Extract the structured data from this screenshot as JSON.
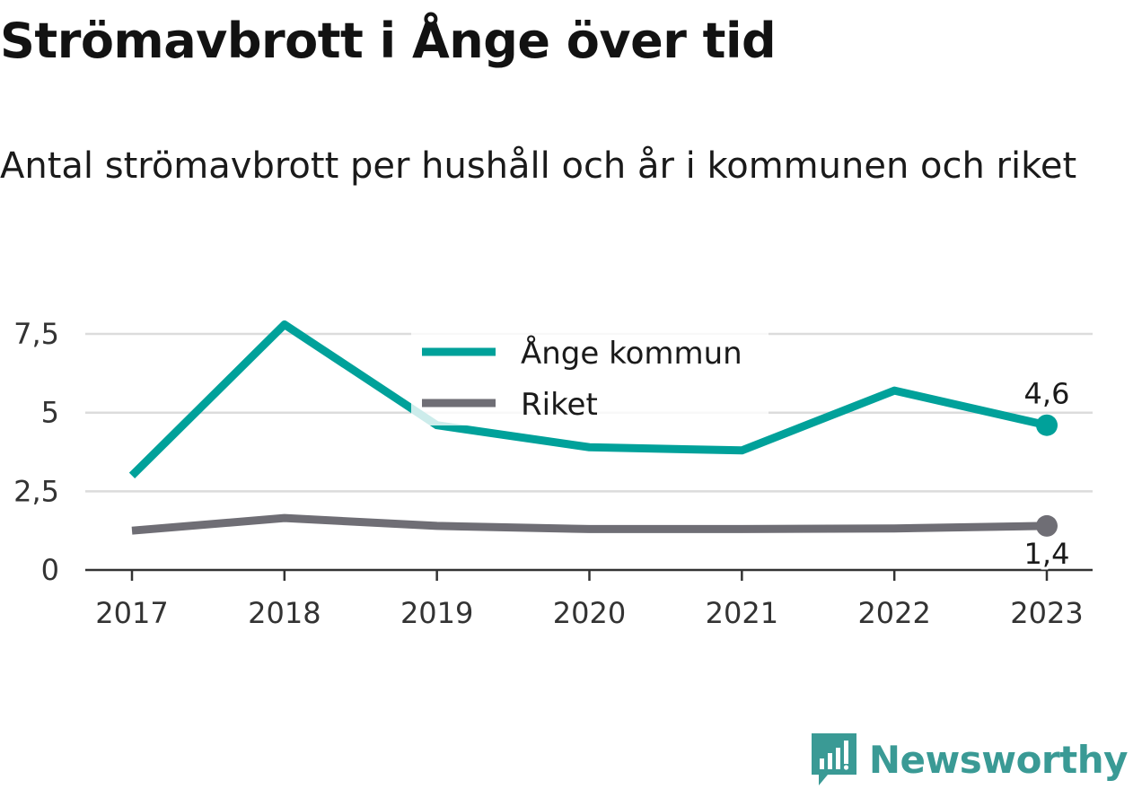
{
  "chart_data": {
    "type": "line",
    "title": "Strömavbrott i Ånge över tid",
    "subtitle": "Antal strömavbrott per hushåll och år i kommunen och riket",
    "x": [
      "2017",
      "2018",
      "2019",
      "2020",
      "2021",
      "2022",
      "2023"
    ],
    "series": [
      {
        "name": "Ånge kommun",
        "color": "#00a19a",
        "values": [
          3.0,
          7.8,
          4.6,
          3.9,
          3.8,
          5.7,
          4.6
        ],
        "end_label": "4,6"
      },
      {
        "name": "Riket",
        "color": "#6f6e75",
        "values": [
          1.25,
          1.65,
          1.4,
          1.3,
          1.3,
          1.32,
          1.4
        ],
        "end_label": "1,4"
      }
    ],
    "ylim": [
      0,
      8.3
    ],
    "yticks": [
      0,
      2.5,
      5,
      7.5
    ],
    "ytick_labels": [
      "0",
      "2,5",
      "5",
      "7,5"
    ],
    "grid": true,
    "legend": "top-center"
  },
  "brand": {
    "name": "Newsworthy",
    "color": "#3a9a95",
    "icon": "newsworthy-logo-icon"
  }
}
